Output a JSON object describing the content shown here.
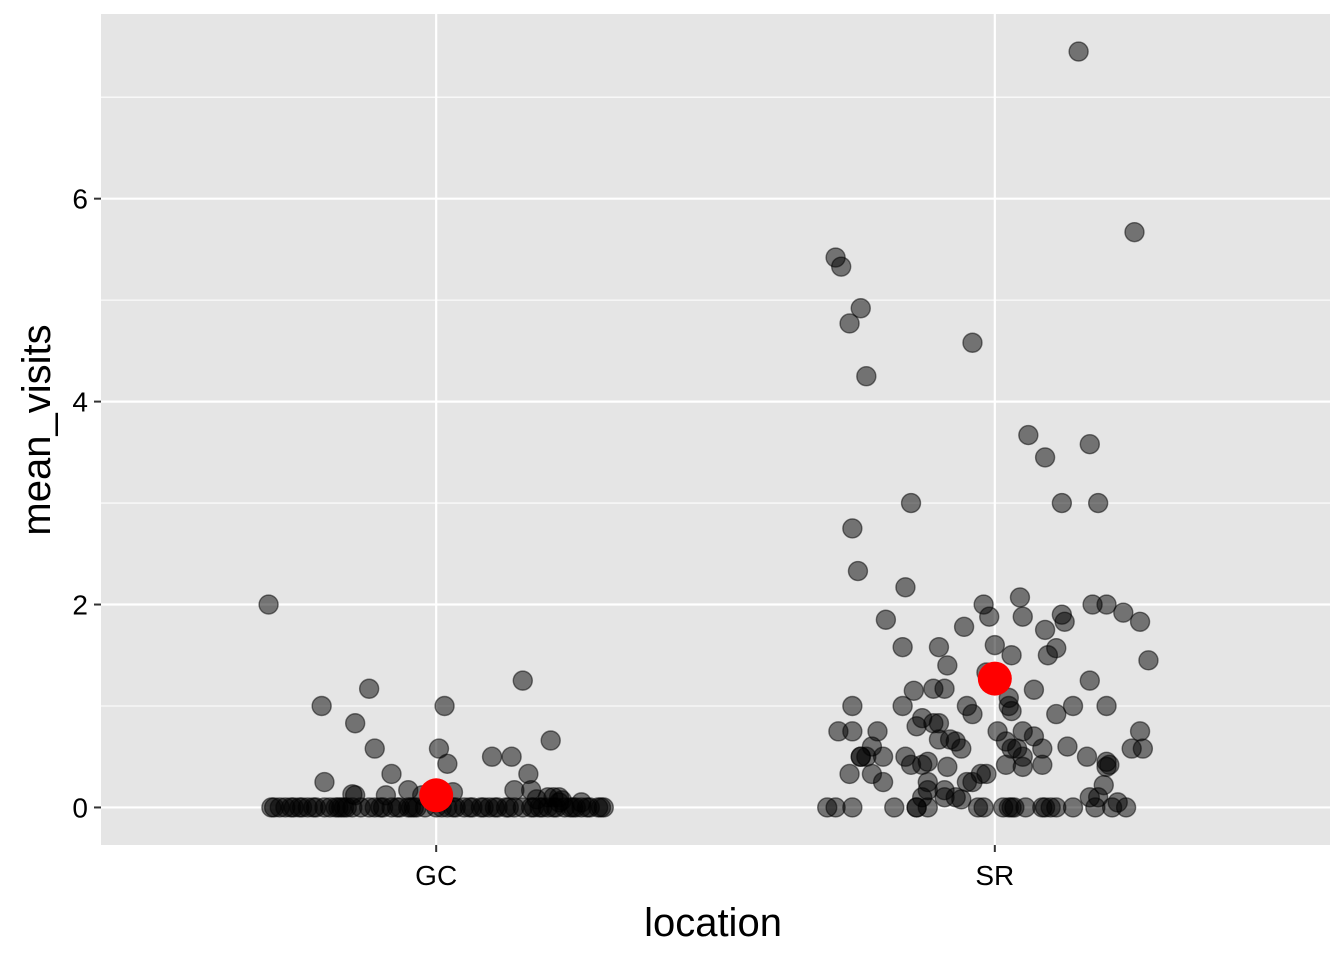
{
  "chart_data": {
    "type": "scatter",
    "title": "",
    "xlabel": "location",
    "ylabel": "mean_visits",
    "categories": [
      "GC",
      "SR"
    ],
    "ylim": [
      -0.37,
      7.82
    ],
    "y_ticks": [
      "0",
      "2",
      "4",
      "6"
    ],
    "y_tick_values": [
      0,
      2,
      4,
      6
    ],
    "grid": true,
    "legend": "none",
    "colors": {
      "panel_background": "#e5e5e5",
      "grid_line": "#ffffff",
      "point": "#000000",
      "summary_point": "#ff0000"
    },
    "point_opacity": 0.5,
    "series": [
      {
        "category": "GC",
        "jitter": [
          -0.295,
          -0.28,
          -0.27,
          -0.255,
          -0.24,
          -0.23,
          -0.215,
          -0.2,
          -0.19,
          -0.175,
          -0.16,
          -0.15,
          -0.135,
          -0.12,
          -0.11,
          -0.095,
          -0.08,
          -0.065,
          -0.05,
          -0.035,
          -0.02,
          0.0,
          0.02,
          0.035,
          0.05,
          0.065,
          0.08,
          0.095,
          0.11,
          0.125,
          0.14,
          0.155,
          0.17,
          0.185,
          0.2,
          0.215,
          0.23,
          0.245,
          0.26,
          0.275,
          0.29,
          0.3,
          -0.29,
          -0.26,
          -0.245,
          -0.22,
          -0.18,
          -0.17,
          -0.165,
          -0.1,
          -0.07,
          -0.045,
          -0.04,
          0.01,
          0.03,
          0.06,
          0.085,
          0.105,
          0.13,
          0.175,
          0.19,
          0.21,
          0.24,
          0.25,
          0.27,
          0.295,
          -0.3,
          -0.12,
          0.015,
          0.155,
          0.2,
          -0.205,
          -0.145,
          -0.08,
          0.1,
          0.165,
          0.205,
          -0.11,
          -0.05,
          -0.2,
          0.005,
          -0.145,
          -0.025,
          0.02,
          0.03,
          0.135,
          0.17,
          -0.09,
          -0.15,
          0.14,
          0.22,
          0.18,
          0.21,
          0.22,
          0.26,
          0.225
        ],
        "values": [
          0,
          0,
          0,
          0,
          0,
          0,
          0,
          0,
          0,
          0,
          0,
          0,
          0,
          0,
          0,
          0,
          0,
          0,
          0,
          0,
          0,
          0,
          0,
          0,
          0,
          0,
          0,
          0,
          0,
          0,
          0,
          0,
          0,
          0,
          0,
          0,
          0,
          0,
          0,
          0,
          0,
          0,
          0,
          0,
          0,
          0,
          0,
          0,
          0,
          0,
          0,
          0,
          0,
          0,
          0,
          0,
          0,
          0,
          0,
          0,
          0,
          0,
          0,
          0,
          0,
          0,
          2,
          1.17,
          1.0,
          1.25,
          0.1,
          1.0,
          0.83,
          0.33,
          0.5,
          0.33,
          0.66,
          0.58,
          0.17,
          0.25,
          0.58,
          0.12,
          0.12,
          0.43,
          0.15,
          0.5,
          0.17,
          0.12,
          0.13,
          0.17,
          0.05,
          0.08,
          0.1,
          0.1,
          0.05,
          0.07
        ]
      },
      {
        "category": "SR",
        "jitter": [
          0.15,
          -0.275,
          -0.26,
          -0.23,
          -0.24,
          0.25,
          -0.04,
          -0.285,
          -0.255,
          -0.245,
          -0.195,
          -0.165,
          -0.16,
          -0.15,
          -0.085,
          0.12,
          0.17,
          0.06,
          0.09,
          0.12,
          0.185,
          0.125,
          0.2,
          0.175,
          0.26,
          0.045,
          -0.02,
          0.095,
          0.11,
          0.275,
          -0.255,
          -0.255,
          -0.28,
          -0.24,
          -0.23,
          -0.24,
          -0.2,
          -0.16,
          -0.15,
          -0.12,
          -0.12,
          -0.12,
          -0.09,
          -0.09,
          -0.07,
          -0.06,
          -0.05,
          -0.03,
          -0.02,
          0.015,
          0.025,
          0.03,
          0.035,
          0.055,
          0.09,
          0.1,
          0.18,
          0.21,
          0.235,
          -0.11,
          -0.1,
          -0.1,
          -0.08,
          -0.06,
          -0.04,
          -0.025,
          -0.015,
          0.02,
          0.03,
          0.04,
          0.05,
          0.085,
          0.05,
          0.005,
          0.05,
          0.07,
          0.13,
          0.2,
          0.26,
          -0.145,
          0.025,
          0.11,
          0.165,
          -0.1,
          0.17,
          0.025,
          -0.09,
          0.07,
          0.2,
          -0.285,
          -0.255,
          -0.22,
          -0.21,
          -0.165,
          -0.11,
          -0.04,
          -0.085,
          0.03,
          0.17,
          -0.18,
          -0.14,
          0.11,
          0.14,
          0.14,
          -0.13,
          -0.26,
          -0.22,
          -0.2,
          -0.13,
          -0.14,
          -0.14,
          -0.13,
          -0.07,
          0.05,
          0.09,
          -0.055,
          0.03,
          -0.015,
          -0.01,
          0.0,
          0.02,
          -0.05,
          0.085,
          0.245,
          0.265,
          -0.3,
          -0.12,
          0.205,
          0.23,
          0.2,
          0.195,
          0.185,
          0.22,
          0.085
        ],
        "values": [
          7.45,
          5.33,
          4.77,
          4.25,
          4.92,
          5.67,
          4.58,
          5.42,
          2.75,
          2.33,
          1.85,
          1.58,
          2.17,
          3.0,
          1.4,
          1.9,
          3.58,
          3.67,
          3.45,
          3.0,
          3.0,
          1.83,
          2.0,
          2.0,
          1.83,
          2.07,
          2.0,
          1.5,
          1.57,
          1.45,
          1.0,
          0.75,
          0.75,
          0.5,
          0.5,
          0.5,
          0.5,
          0.5,
          0.42,
          0.45,
          0.25,
          0.17,
          0.17,
          0.1,
          0.1,
          0.08,
          0.25,
          0.0,
          0.0,
          0.0,
          0.0,
          0.0,
          0.0,
          0.0,
          0.0,
          0.0,
          0.0,
          0.0,
          0.0,
          0.83,
          0.83,
          0.67,
          0.67,
          0.58,
          0.25,
          0.33,
          0.33,
          0.65,
          0.58,
          0.58,
          0.5,
          0.58,
          0.4,
          0.75,
          0.75,
          0.7,
          0.6,
          0.45,
          0.75,
          1.15,
          1.0,
          0.92,
          0.5,
          1.58,
          1.25,
          1.08,
          1.17,
          1.16,
          1.0,
          0.0,
          0.0,
          0.33,
          0.75,
          1.0,
          1.17,
          0.92,
          0.4,
          0.95,
          0.1,
          0.0,
          0.0,
          0.0,
          0.0,
          1.0,
          0.42,
          0.33,
          0.6,
          0.25,
          0.1,
          0.0,
          0.8,
          0.88,
          0.65,
          1.88,
          1.75,
          1.78,
          1.5,
          1.33,
          1.88,
          1.6,
          0.42,
          1.0,
          0.42,
          0.58,
          0.58,
          0.0,
          0.0,
          0.42,
          1.92,
          0.4,
          0.22,
          0.1,
          0.05,
          0.0
        ]
      }
    ],
    "summary_points": [
      {
        "category": "GC",
        "value": 0.12
      },
      {
        "category": "SR",
        "value": 1.27
      }
    ]
  }
}
